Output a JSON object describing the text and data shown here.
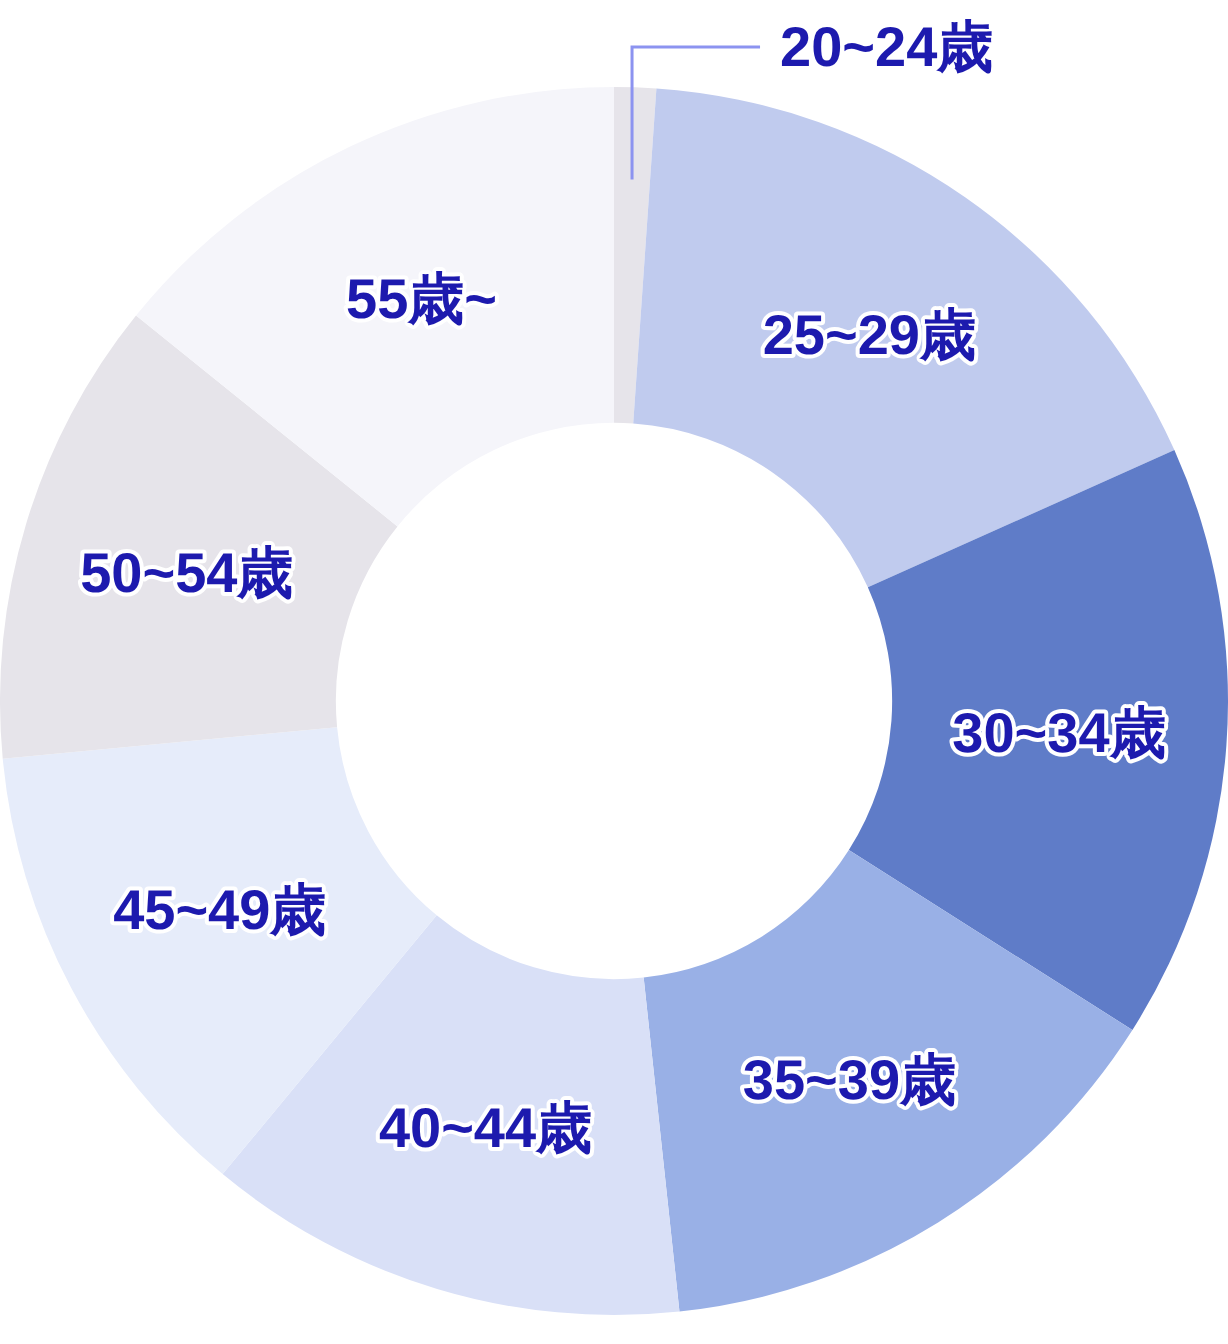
{
  "chart_data": {
    "type": "donut",
    "categories": [
      "20~24歳",
      "25~29歳",
      "30~34歳",
      "35~39歳",
      "40~44歳",
      "45~49歳",
      "50~54歳",
      "55歳~"
    ],
    "values": [
      1.1,
      17.2,
      15.7,
      14.3,
      12.7,
      12.5,
      12.3,
      14.2
    ],
    "colors": [
      "#e6e4ea",
      "#c0cbee",
      "#5f7cc8",
      "#99b0e6",
      "#d9e0f7",
      "#e6ecfa",
      "#e6e4ea",
      "#f5f5fa"
    ]
  }
}
